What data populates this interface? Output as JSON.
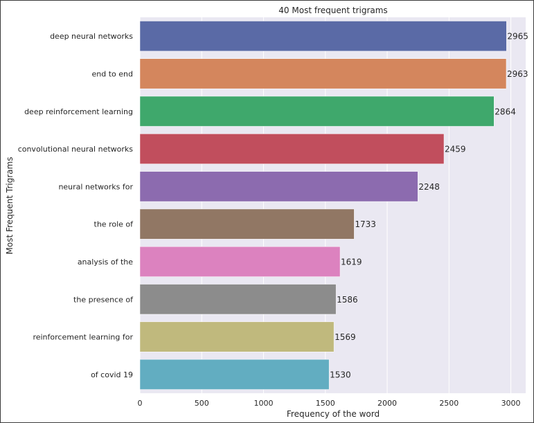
{
  "chart_data": {
    "type": "bar",
    "orientation": "horizontal",
    "title": "40 Most frequent trigrams",
    "xlabel": "Frequency of the word",
    "ylabel": "Most Frequent Trigrams",
    "xlim": [
      0,
      3120
    ],
    "xticks": [
      0,
      500,
      1000,
      1500,
      2000,
      2500,
      3000
    ],
    "grid": true,
    "categories": [
      "deep neural networks",
      "end to end",
      "deep reinforcement learning",
      "convolutional neural networks",
      "neural networks for",
      "the role of",
      "analysis of the",
      "the presence of",
      "reinforcement learning for",
      "of covid 19"
    ],
    "values": [
      2965,
      2963,
      2864,
      2459,
      2248,
      1733,
      1619,
      1586,
      1569,
      1530
    ],
    "colors": [
      "#5a6aa6",
      "#d4865d",
      "#3fa86c",
      "#c14e5d",
      "#8c6baf",
      "#917764",
      "#dc82bf",
      "#8c8c8c",
      "#c0b97d",
      "#62adc1"
    ],
    "plot_background": "#eae8f2",
    "grid_color": "#ffffff"
  }
}
